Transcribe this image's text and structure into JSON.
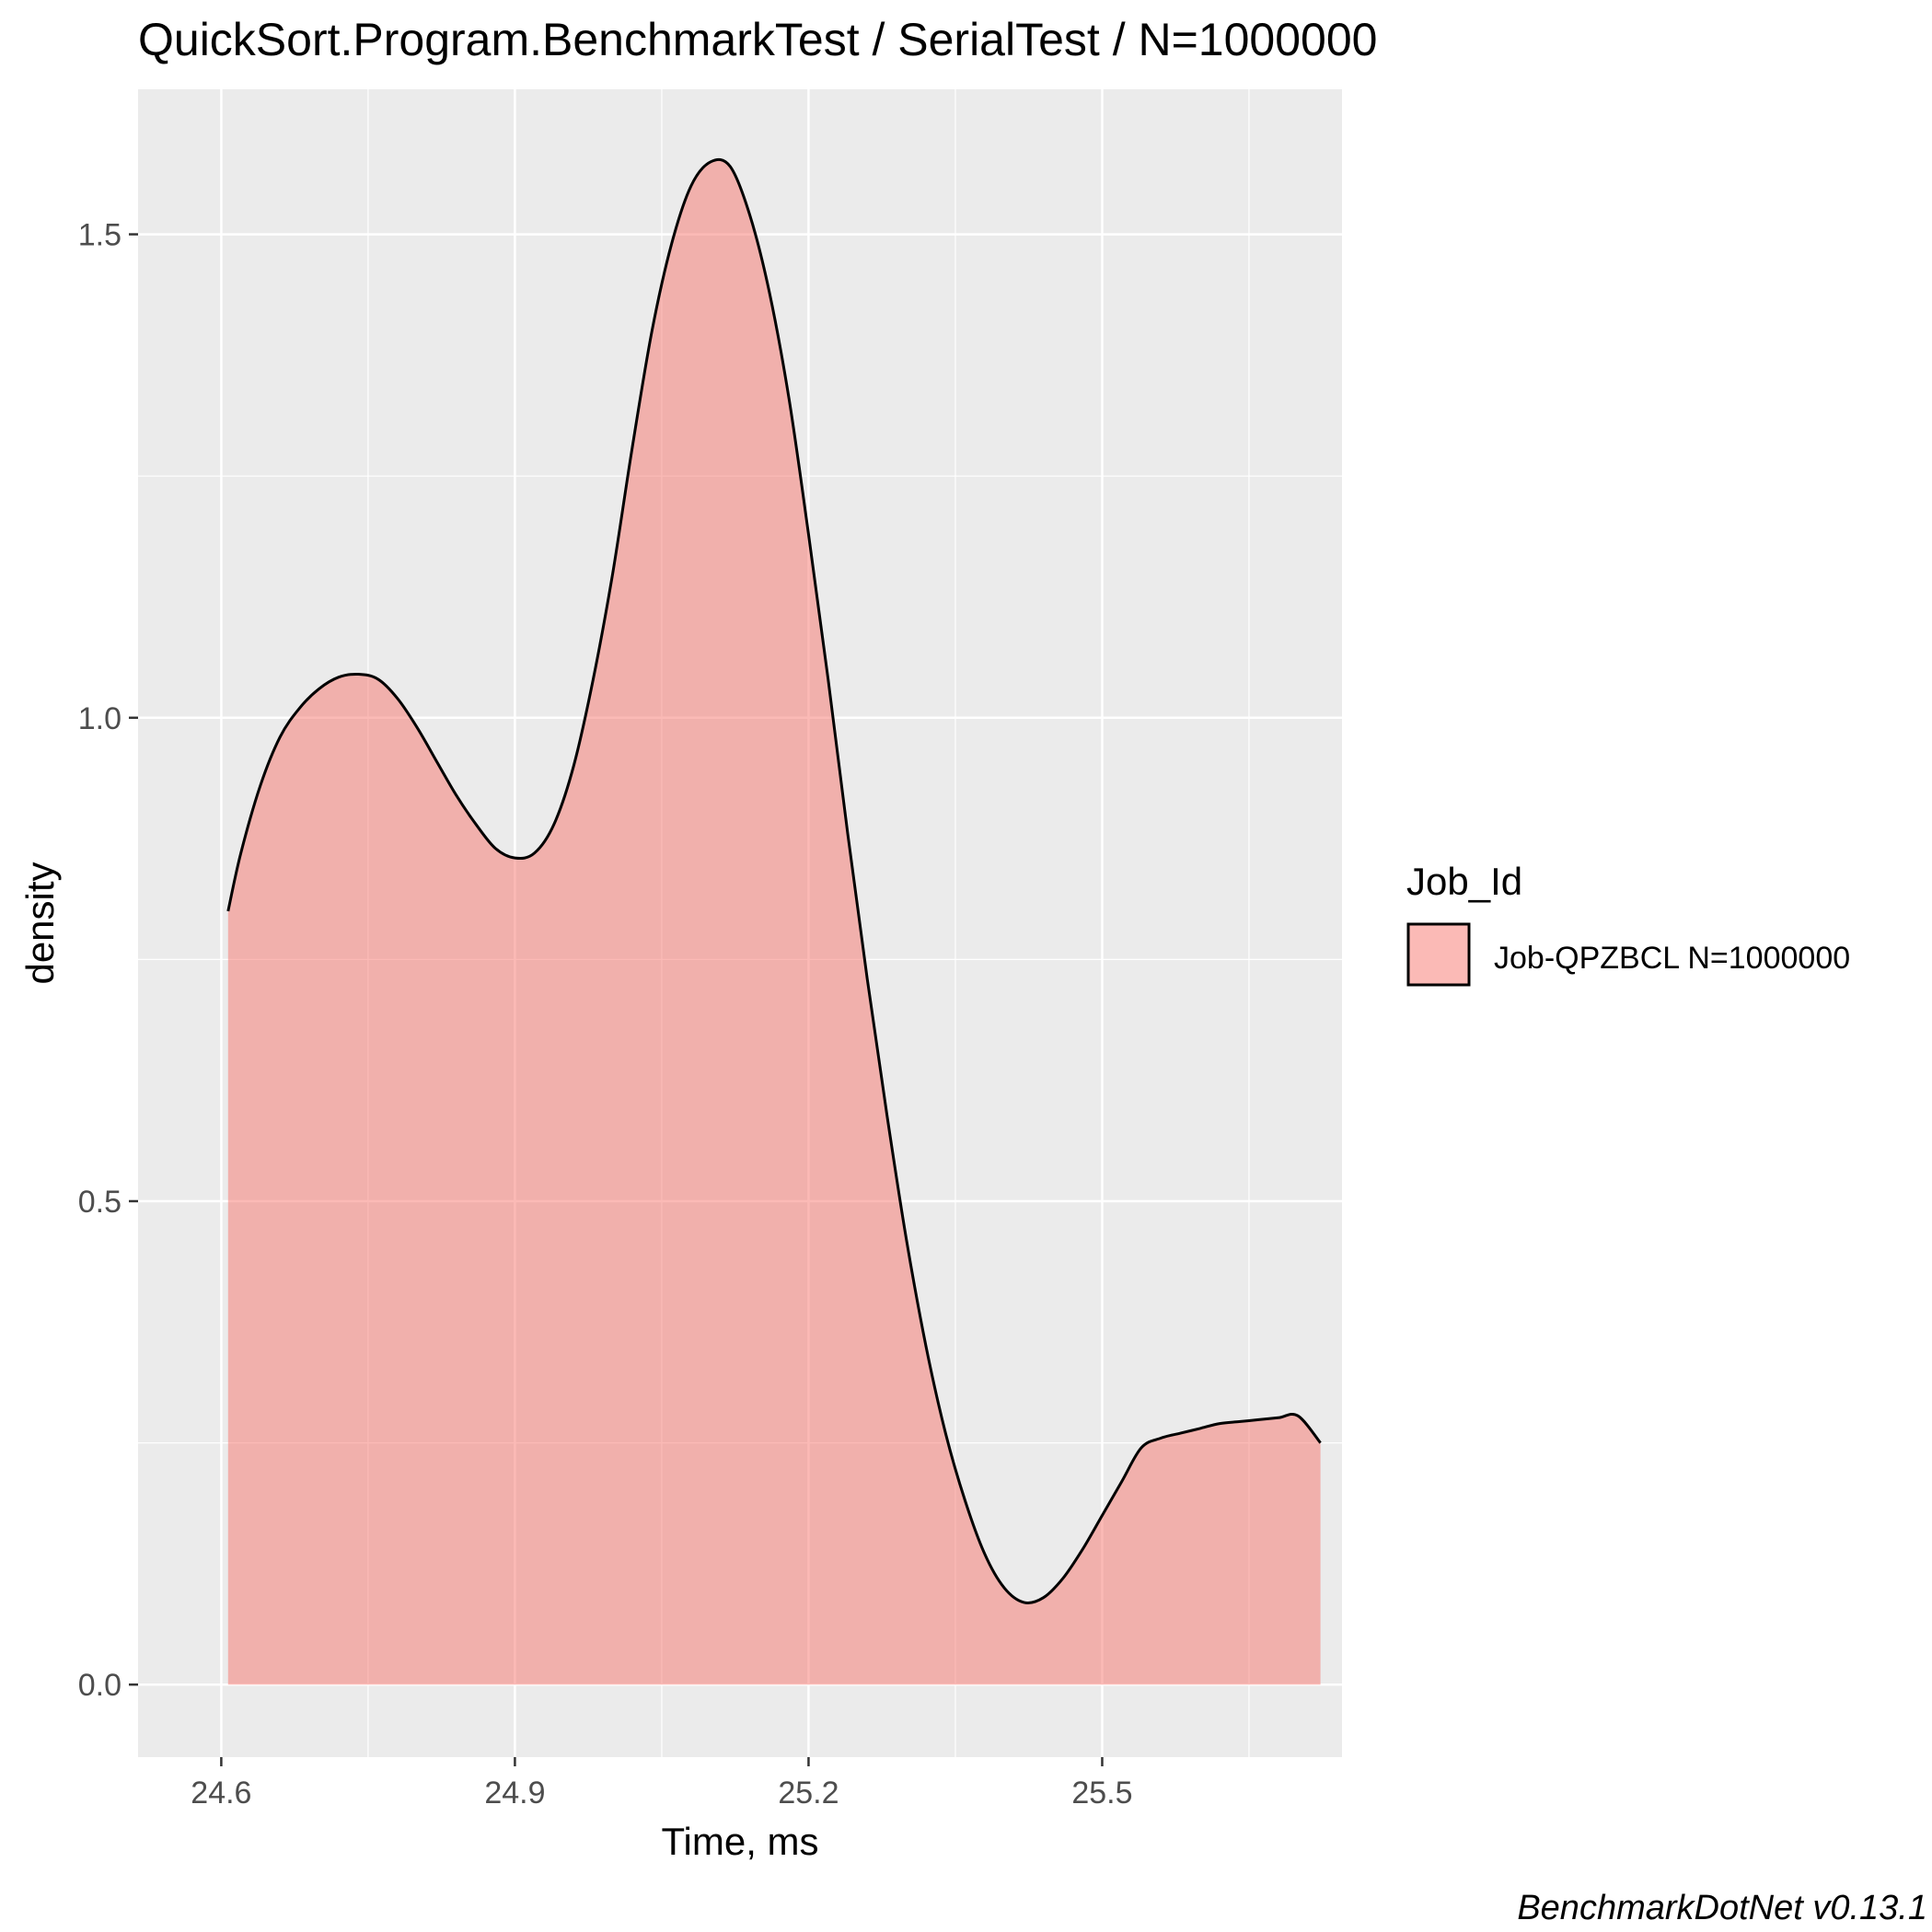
{
  "chart_data": {
    "type": "area",
    "title": "QuickSort.Program.BenchmarkTest / SerialTest / N=1000000",
    "xlabel": "Time, ms",
    "ylabel": "density",
    "xlim": [
      24.515,
      25.745
    ],
    "ylim": [
      -0.075,
      1.65
    ],
    "x_ticks": [
      "24.6",
      "24.9",
      "25.2",
      "25.5"
    ],
    "x_tick_values": [
      24.6,
      24.9,
      25.2,
      25.5
    ],
    "x_minor_values": [
      24.75,
      25.05,
      25.35,
      25.65
    ],
    "y_ticks": [
      "0.0",
      "0.5",
      "1.0",
      "1.5"
    ],
    "y_tick_values": [
      0.0,
      0.5,
      1.0,
      1.5
    ],
    "y_minor_values": [
      0.25,
      0.75,
      1.25
    ],
    "grid": true,
    "legend_position": "right",
    "legend_title": "Job_Id",
    "series": [
      {
        "name": "Job-QPZBCL N=1000000",
        "fill": "#F8766D",
        "x": [
          24.607,
          24.62,
          24.64,
          24.66,
          24.68,
          24.7,
          24.72,
          24.74,
          24.76,
          24.78,
          24.8,
          24.82,
          24.84,
          24.86,
          24.88,
          24.9,
          24.92,
          24.94,
          24.96,
          24.98,
          25.0,
          25.02,
          25.04,
          25.06,
          25.08,
          25.1,
          25.12,
          25.14,
          25.16,
          25.18,
          25.2,
          25.22,
          25.24,
          25.26,
          25.28,
          25.3,
          25.32,
          25.34,
          25.36,
          25.38,
          25.4,
          25.42,
          25.44,
          25.46,
          25.48,
          25.5,
          25.52,
          25.54,
          25.56,
          25.58,
          25.6,
          25.62,
          25.64,
          25.66,
          25.68,
          25.7,
          25.723
        ],
        "y": [
          0.8,
          0.86,
          0.93,
          0.98,
          1.01,
          1.03,
          1.042,
          1.045,
          1.04,
          1.02,
          0.99,
          0.955,
          0.92,
          0.89,
          0.865,
          0.855,
          0.86,
          0.89,
          0.95,
          1.04,
          1.15,
          1.28,
          1.4,
          1.49,
          1.55,
          1.575,
          1.57,
          1.52,
          1.44,
          1.33,
          1.19,
          1.04,
          0.88,
          0.73,
          0.59,
          0.46,
          0.35,
          0.26,
          0.19,
          0.135,
          0.1,
          0.085,
          0.09,
          0.11,
          0.14,
          0.175,
          0.21,
          0.245,
          0.255,
          0.26,
          0.265,
          0.27,
          0.272,
          0.274,
          0.276,
          0.278,
          0.25
        ]
      }
    ]
  },
  "caption": "BenchmarkDotNet v0.13.1",
  "colors": {
    "panel_background": "#EBEBEB",
    "grid_major": "#FFFFFF",
    "area_fill": "#F8766D",
    "outline": "#000000"
  }
}
